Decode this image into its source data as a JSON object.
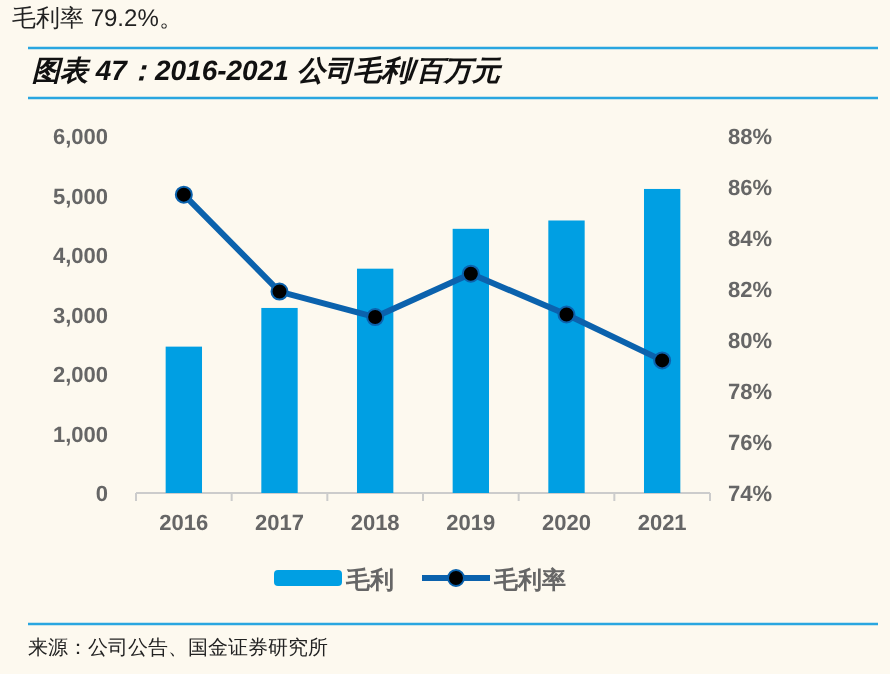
{
  "chart_data": {
    "type": "bar",
    "title": "图表 47：2016-2021 公司毛利/百万元",
    "categories": [
      "2016",
      "2017",
      "2018",
      "2019",
      "2020",
      "2021"
    ],
    "series": [
      {
        "name": "毛利",
        "color": "#009fe3",
        "values": [
          2460,
          3110,
          3770,
          4440,
          4580,
          5110
        ]
      },
      {
        "name": "毛利率",
        "type": "line",
        "axis": "y2",
        "color": "#0b62ad",
        "marker": "circle",
        "values": [
          85.7,
          81.9,
          80.9,
          82.6,
          81.0,
          79.2
        ]
      }
    ],
    "ylim": [
      0,
      6000
    ],
    "yticks": [
      {
        "value": 0,
        "label": "0"
      },
      {
        "value": 1000,
        "label": "1,000"
      },
      {
        "value": 2000,
        "label": "2,000"
      },
      {
        "value": 3000,
        "label": "3,000"
      },
      {
        "value": 4000,
        "label": "4,000"
      },
      {
        "value": 5000,
        "label": "5,000"
      },
      {
        "value": 6000,
        "label": "6,000"
      }
    ],
    "y2lim": [
      74,
      88
    ],
    "y2ticks": [
      {
        "value": 74,
        "label": "74%"
      },
      {
        "value": 76,
        "label": "76%"
      },
      {
        "value": 78,
        "label": "78%"
      },
      {
        "value": 80,
        "label": "80%"
      },
      {
        "value": 82,
        "label": "82%"
      },
      {
        "value": 84,
        "label": "84%"
      },
      {
        "value": 86,
        "label": "86%"
      },
      {
        "value": 88,
        "label": "88%"
      }
    ],
    "legend": "bottom",
    "grid": false,
    "annotations": [
      "毛利率 79.2%。",
      "来源：公司公告、国金证券研究所"
    ]
  }
}
